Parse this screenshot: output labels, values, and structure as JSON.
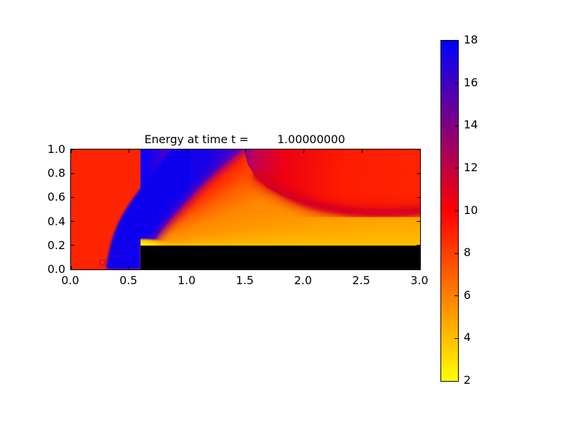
{
  "title": "Energy at time t =        1.00000000",
  "axes": {
    "x_tick_labels": [
      "0.0",
      "0.5",
      "1.0",
      "1.5",
      "2.0",
      "2.5",
      "3.0"
    ],
    "y_tick_labels": [
      "0.0",
      "0.2",
      "0.4",
      "0.6",
      "0.8",
      "1.0"
    ]
  },
  "colorbar": {
    "tick_labels": [
      "18",
      "16",
      "14",
      "12",
      "10",
      "8",
      "6",
      "4",
      "2"
    ],
    "min": 2,
    "max": 18
  },
  "colors": {
    "figure_background": "#FFFFFF",
    "upstream_red": "#FF2400",
    "shock_blue": "#0B06EE",
    "step_black": "#000000",
    "corner_yellow": "#FFFF00",
    "post_expansion_orange": "#FF9000",
    "reflected_shock_crimson": "#D40022"
  },
  "chart_data": {
    "type": "heatmap",
    "title": "Energy at time t =        1.00000000",
    "field": "Energy",
    "time": 1.0,
    "x_range": [
      0.0,
      3.0
    ],
    "y_range": [
      0.0,
      1.0
    ],
    "x_ticks": [
      0.0,
      0.5,
      1.0,
      1.5,
      2.0,
      2.5,
      3.0
    ],
    "y_ticks": [
      0.0,
      0.2,
      0.4,
      0.6,
      0.8,
      1.0
    ],
    "value_range": [
      2,
      18
    ],
    "colormap_stops": [
      {
        "value": 2,
        "color": "#FFFF00"
      },
      {
        "value": 6,
        "color": "#FF8000"
      },
      {
        "value": 10,
        "color": "#FF0000"
      },
      {
        "value": 14,
        "color": "#800080"
      },
      {
        "value": 18,
        "color": "#0000FF"
      }
    ],
    "legend_position": "right-colorbar",
    "grid": false,
    "aspect": "equal",
    "features": [
      {
        "name": "step-obstacle",
        "description": "black masked rectangle (forward-facing step)",
        "x": [
          0.6,
          3.0
        ],
        "y": [
          0.0,
          0.2
        ]
      },
      {
        "name": "upstream-region",
        "approx_value": 9.0,
        "description": "uniform red region left of the curved bow shock"
      },
      {
        "name": "bow-shock-band",
        "approx_value": 17.5,
        "description": "blue high-energy band curving from (0.3,0) at the floor up to (1.5,1.0) at the top wall"
      },
      {
        "name": "expansion-fan",
        "approx_value_range": [
          3,
          16
        ],
        "description": "fan centered on step corner (0.6,0.2): yellow at corner through orange, red, purple into the blue band"
      },
      {
        "name": "post-expansion-region",
        "approx_value": 6.0,
        "description": "orange region above the step surface extending to x=3 with yellow strip along the step"
      },
      {
        "name": "reflected-shock",
        "approx_value": 11.5,
        "description": "dark crimson band from about (1.6,0.72) curving down to (3.0,0.5)"
      },
      {
        "name": "upper-right-region",
        "approx_value": 9.5,
        "description": "red region above the reflected shock toward the top-right corner"
      },
      {
        "name": "vortex-artifact",
        "description": "small red/purple ring near (0.27,0.06) inside the blue band"
      }
    ]
  }
}
